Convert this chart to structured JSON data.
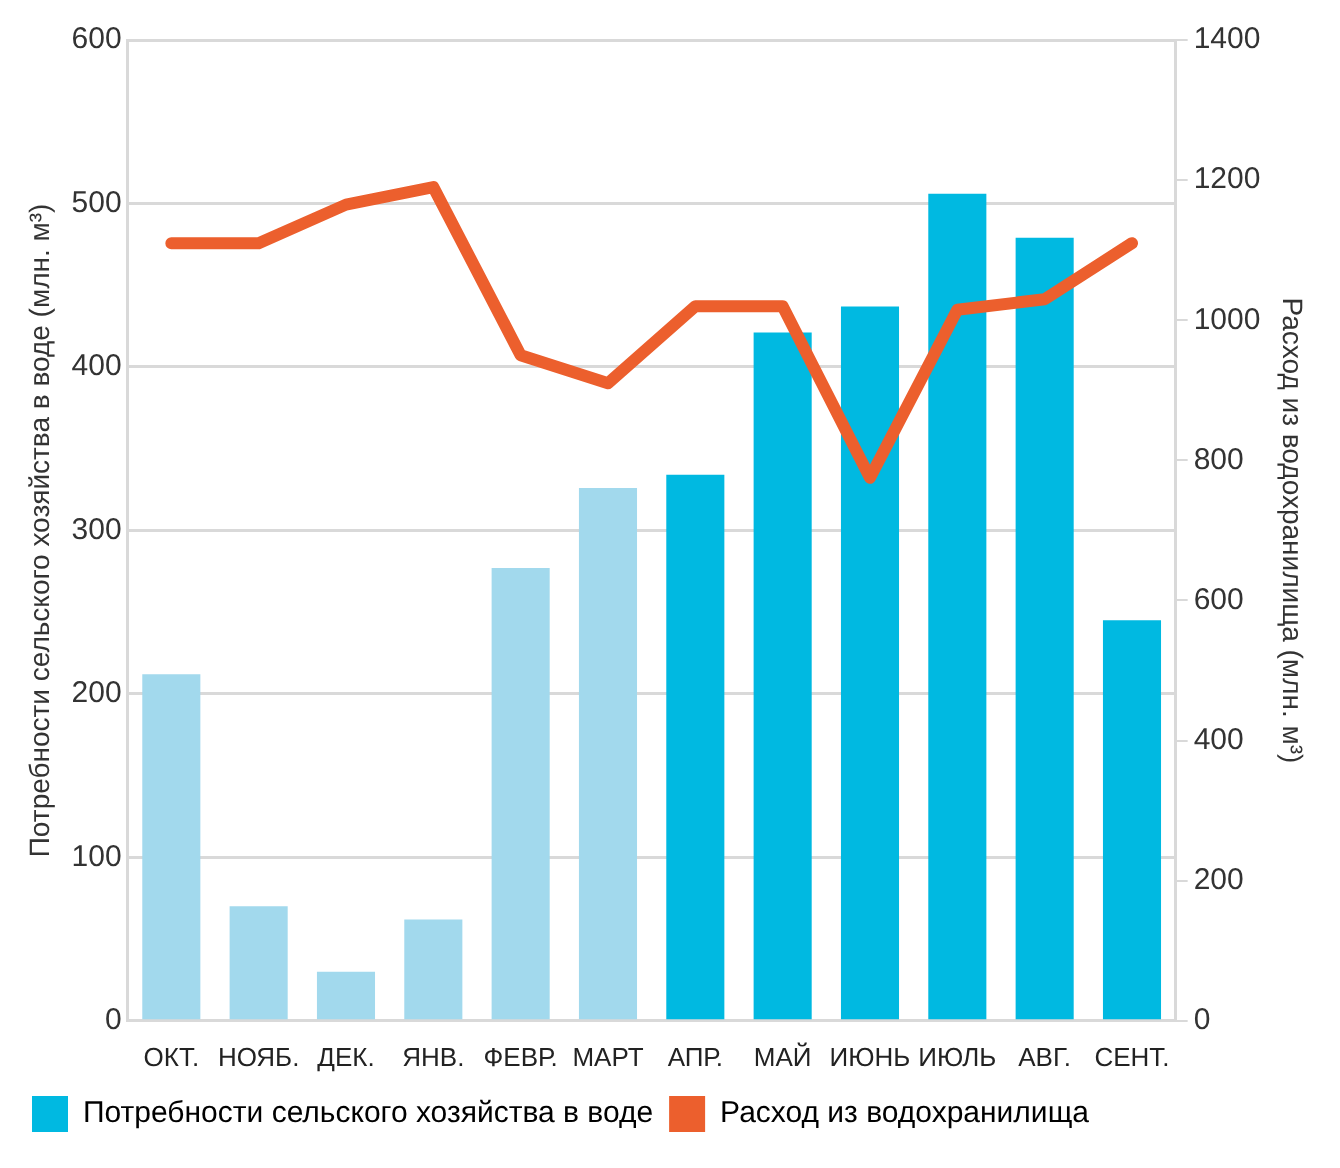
{
  "chart_data": {
    "type": "bar",
    "categories": [
      "ОКТ.",
      "НОЯБ.",
      "ДЕК.",
      "ЯНВ.",
      "ФЕВР.",
      "МАРТ",
      "АПР.",
      "МАЙ",
      "ИЮНЬ",
      "ИЮЛЬ",
      "АВГ.",
      "СЕНТ."
    ],
    "series": [
      {
        "name": "Потребности сельского хозяйства в воде",
        "color": "#00b9e1",
        "colors": [
          "#a2d9ed",
          "#a2d9ed",
          "#a2d9ed",
          "#a2d9ed",
          "#a2d9ed",
          "#a2d9ed",
          "#00b9e1",
          "#00b9e1",
          "#00b9e1",
          "#00b9e1",
          "#00b9e1",
          "#00b9e1"
        ],
        "values": [
          212,
          70,
          30,
          62,
          277,
          326,
          334,
          421,
          437,
          506,
          479,
          245
        ]
      },
      {
        "name": "Расход из водохранилища",
        "type": "line",
        "axis": "y2",
        "color": "#ec5f2d",
        "values": [
          1110,
          1110,
          1165,
          1190,
          950,
          910,
          1020,
          1020,
          775,
          1015,
          1030,
          1110
        ]
      }
    ],
    "ylabel": "Потребности сельского хозяйства в воде (млн. м³)",
    "y2label": "Расход из водохранилища (млн. м³)",
    "ylim": [
      0,
      600
    ],
    "yticks": [
      0,
      100,
      200,
      300,
      400,
      500,
      600
    ],
    "y2lim": [
      0,
      1400
    ],
    "y2ticks": [
      0,
      200,
      400,
      600,
      800,
      1000,
      1200,
      1400
    ],
    "grid": "y",
    "legend": "bottom",
    "marker": "none"
  }
}
